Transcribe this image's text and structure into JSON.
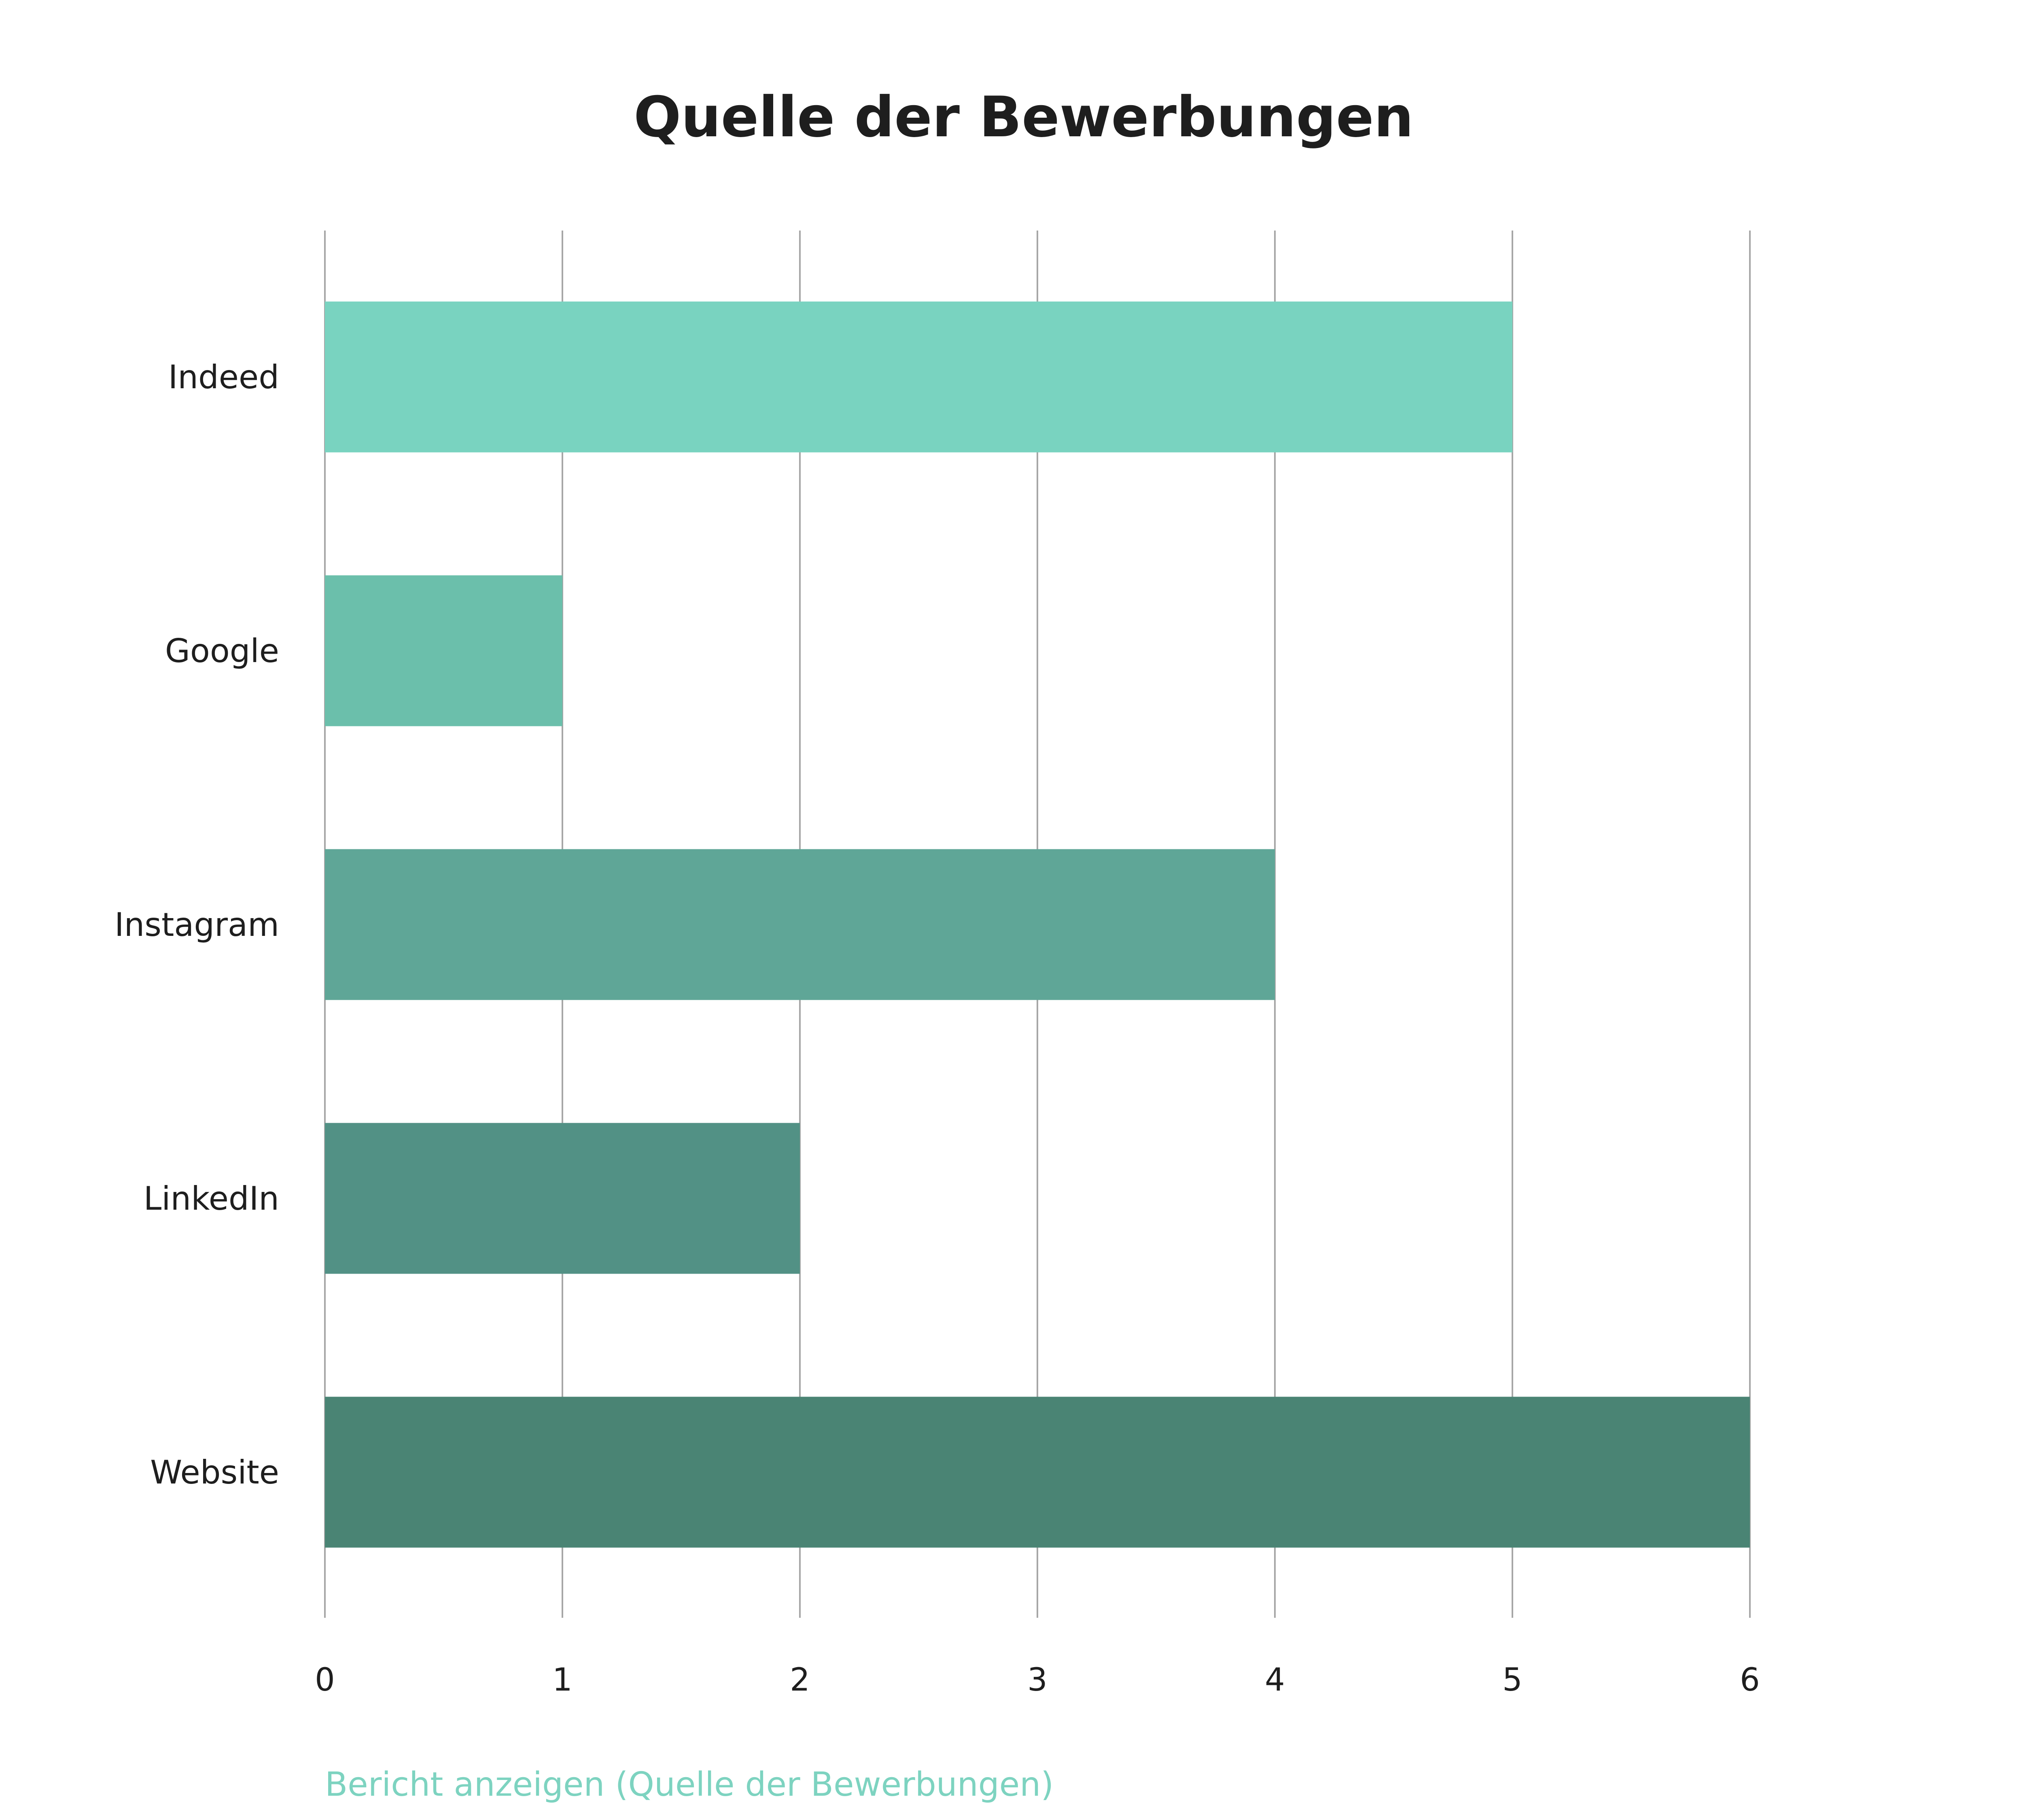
{
  "chart_data": {
    "type": "bar",
    "orientation": "horizontal",
    "title": "Quelle der Bewerbungen",
    "categories": [
      "Indeed",
      "Google",
      "Instagram",
      "LinkedIn",
      "Website"
    ],
    "values": [
      5,
      1,
      4,
      2,
      6
    ],
    "colors": [
      "#79d3c0",
      "#6bbfab",
      "#5fa697",
      "#529185",
      "#4a8474"
    ],
    "xlim": [
      0,
      6
    ],
    "xticks": [
      "0",
      "1",
      "2",
      "3",
      "4",
      "5",
      "6"
    ],
    "grid": true,
    "legend": "none"
  },
  "footer": {
    "report_link_label": "Bericht anzeigen (Quelle der Bewerbungen)",
    "link_color": "#7dd3c0"
  }
}
